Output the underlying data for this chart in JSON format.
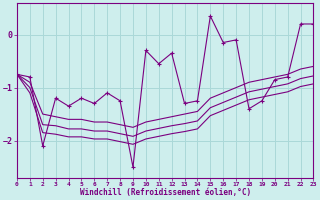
{
  "xlabel": "Windchill (Refroidissement éolien,°C)",
  "bg_color": "#ceeeed",
  "grid_color": "#aad8d8",
  "line_color": "#7b0080",
  "xlim": [
    0,
    23
  ],
  "ylim": [
    -2.7,
    0.6
  ],
  "yticks": [
    -2,
    -1,
    0
  ],
  "xticks": [
    0,
    1,
    2,
    3,
    4,
    5,
    6,
    7,
    8,
    9,
    10,
    11,
    12,
    13,
    14,
    15,
    16,
    17,
    18,
    19,
    20,
    21,
    22,
    23
  ],
  "jagged": [
    -0.75,
    -0.8,
    -2.1,
    -1.2,
    -1.35,
    -1.2,
    -1.3,
    -1.1,
    -1.25,
    -2.5,
    -0.3,
    -0.55,
    -0.35,
    -1.3,
    -1.25,
    0.35,
    -0.15,
    -0.1,
    -1.4,
    -1.25,
    -0.85,
    -0.8,
    0.2,
    0.2
  ],
  "trend1": [
    -0.75,
    -0.9,
    -1.5,
    -1.55,
    -1.6,
    -1.6,
    -1.65,
    -1.65,
    -1.7,
    -1.75,
    -1.65,
    -1.6,
    -1.55,
    -1.5,
    -1.45,
    -1.2,
    -1.1,
    -1.0,
    -0.9,
    -0.85,
    -0.8,
    -0.75,
    -0.65,
    -0.6
  ],
  "trend2": [
    -0.75,
    -1.0,
    -1.7,
    -1.72,
    -1.78,
    -1.78,
    -1.82,
    -1.82,
    -1.87,
    -1.92,
    -1.82,
    -1.77,
    -1.72,
    -1.68,
    -1.63,
    -1.38,
    -1.28,
    -1.18,
    -1.08,
    -1.03,
    -0.98,
    -0.93,
    -0.83,
    -0.78
  ],
  "trend3": [
    -0.75,
    -1.1,
    -1.85,
    -1.88,
    -1.93,
    -1.93,
    -1.97,
    -1.97,
    -2.02,
    -2.07,
    -1.97,
    -1.92,
    -1.87,
    -1.83,
    -1.78,
    -1.53,
    -1.43,
    -1.33,
    -1.23,
    -1.18,
    -1.13,
    -1.08,
    -0.98,
    -0.93
  ]
}
